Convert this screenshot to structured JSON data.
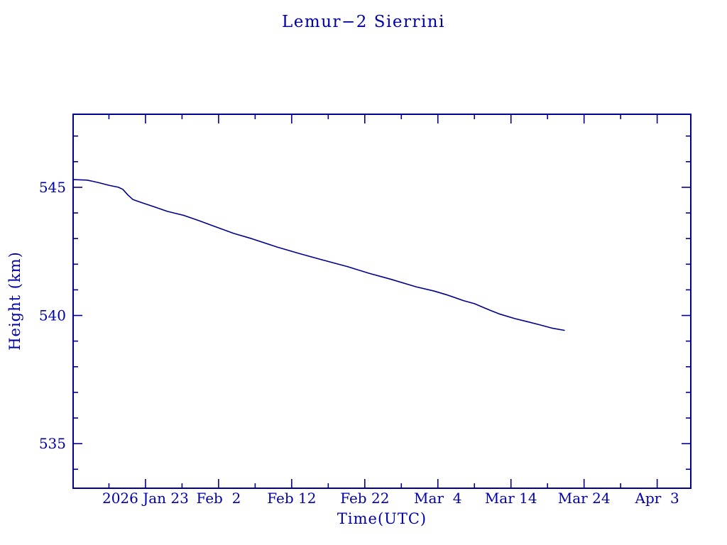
{
  "page": {
    "background": "#ffffff"
  },
  "chart_data": {
    "type": "line",
    "title": "Lemur−2 Sierrini",
    "xlabel": "Time(UTC)",
    "ylabel": "Height (km)",
    "grid": false,
    "legend": false,
    "x_unit": "day_of_year_2026_utc",
    "y_unit": "km",
    "xlim": [
      13.1,
      97.6
    ],
    "ylim": [
      533.26,
      547.85
    ],
    "x_ticks_major": [
      {
        "value": 23,
        "label": "2026 Jan 23"
      },
      {
        "value": 33,
        "label": "Feb  2"
      },
      {
        "value": 43,
        "label": "Feb 12"
      },
      {
        "value": 53,
        "label": "Feb 22"
      },
      {
        "value": 63,
        "label": "Mar  4"
      },
      {
        "value": 73,
        "label": "Mar 14"
      },
      {
        "value": 83,
        "label": "Mar 24"
      },
      {
        "value": 93,
        "label": "Apr  3"
      }
    ],
    "x_ticks_minor": [
      18,
      28,
      38,
      48,
      58,
      68,
      78,
      88
    ],
    "y_ticks_major": [
      {
        "value": 545,
        "label": "545"
      },
      {
        "value": 540,
        "label": "540"
      },
      {
        "value": 535,
        "label": "535"
      }
    ],
    "y_ticks_minor": [
      547,
      546,
      544,
      543,
      542,
      541,
      539,
      538,
      537,
      536,
      534
    ],
    "colors": {
      "text": "#0000a8",
      "axis": "#000090",
      "line": "#000090",
      "background": "#ffffff"
    },
    "series": [
      {
        "name": "height_km",
        "points": [
          [
            13.1,
            545.3
          ],
          [
            15.0,
            545.28
          ],
          [
            16.5,
            545.19
          ],
          [
            18.0,
            545.08
          ],
          [
            19.3,
            545.0
          ],
          [
            19.9,
            544.92
          ],
          [
            20.6,
            544.7
          ],
          [
            21.3,
            544.52
          ],
          [
            22.5,
            544.4
          ],
          [
            24.0,
            544.26
          ],
          [
            26.0,
            544.06
          ],
          [
            28.3,
            543.9
          ],
          [
            30.3,
            543.7
          ],
          [
            32.2,
            543.5
          ],
          [
            35.1,
            543.2
          ],
          [
            37.5,
            543.0
          ],
          [
            41.0,
            542.67
          ],
          [
            44.0,
            542.42
          ],
          [
            46.8,
            542.2
          ],
          [
            50.7,
            541.9
          ],
          [
            53.5,
            541.65
          ],
          [
            56.5,
            541.42
          ],
          [
            60.0,
            541.12
          ],
          [
            62.5,
            540.95
          ],
          [
            64.3,
            540.8
          ],
          [
            66.5,
            540.58
          ],
          [
            68.0,
            540.46
          ],
          [
            70.0,
            540.22
          ],
          [
            71.5,
            540.05
          ],
          [
            73.5,
            539.88
          ],
          [
            75.2,
            539.76
          ],
          [
            77.0,
            539.63
          ],
          [
            78.7,
            539.5
          ],
          [
            80.3,
            539.42
          ]
        ]
      }
    ]
  }
}
